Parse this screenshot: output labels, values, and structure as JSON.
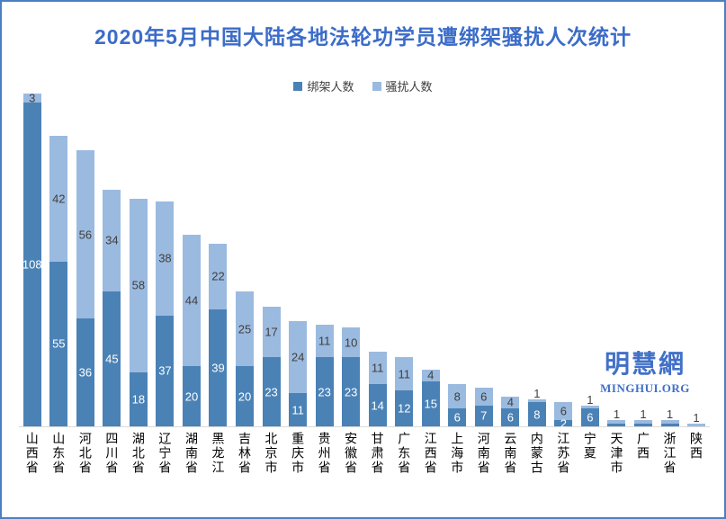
{
  "title": "2020年5月中国大陆各地法轮功学员遭绑架骚扰人次统计",
  "legend": {
    "items": [
      {
        "label": "绑架人数",
        "color": "#4a82b6"
      },
      {
        "label": "骚扰人数",
        "color": "#9bbadf"
      }
    ]
  },
  "watermark": {
    "cn": "明慧網",
    "en": "MINGHUI.ORG"
  },
  "colors": {
    "kidnap_series": "#4a82b6",
    "harass_series": "#9bbadf",
    "title_blue": "#3b6cc8",
    "frame_border": "#4c7ec3",
    "label_dark_text": "#3f3f3f",
    "label_light_text": "#ffffff",
    "axis_line": "#d9d9d9"
  },
  "chart_data": {
    "type": "bar",
    "stacked": true,
    "title": "2020年5月中国大陆各地法轮功学员遭绑架骚扰人次统计",
    "xlabel": "",
    "ylabel": "",
    "ylim": [
      0,
      111
    ],
    "grid": false,
    "legend_position": "top",
    "categories": [
      "山西省",
      "山东省",
      "河北省",
      "四川省",
      "湖北省",
      "辽宁省",
      "湖南省",
      "黑龙江",
      "吉林省",
      "北京市",
      "重庆市",
      "贵州省",
      "安徽省",
      "甘肃省",
      "广东省",
      "江西省",
      "上海市",
      "河南省",
      "云南省",
      "内蒙古",
      "江苏省",
      "宁夏",
      "天津市",
      "广西",
      "浙江省",
      "陕西"
    ],
    "series": [
      {
        "name": "绑架人数",
        "color": "#4a82b6",
        "values": [
          108,
          55,
          36,
          45,
          18,
          37,
          20,
          39,
          20,
          23,
          11,
          23,
          23,
          14,
          12,
          15,
          6,
          7,
          6,
          8,
          2,
          6,
          1,
          1,
          1,
          0
        ]
      },
      {
        "name": "骚扰人数",
        "color": "#9bbadf",
        "values": [
          3,
          42,
          56,
          34,
          58,
          38,
          44,
          22,
          25,
          17,
          24,
          11,
          10,
          11,
          11,
          4,
          8,
          6,
          4,
          1,
          6,
          1,
          1,
          1,
          1,
          1
        ]
      }
    ]
  }
}
